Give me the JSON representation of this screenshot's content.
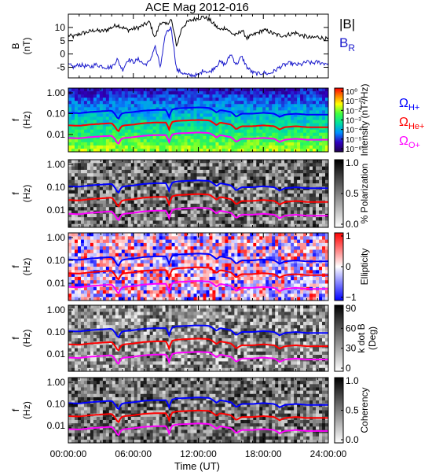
{
  "chart_data": {
    "title": "ACE Mag 2012-016",
    "xlabel": "Time (UT)",
    "x_ticks": [
      "00:00:00",
      "06:00:00",
      "12:00:00",
      "18:00:00",
      "24:00:00"
    ],
    "x_range_hours": [
      0,
      24
    ],
    "colors": {
      "B_total": "#000000",
      "B_R": "#1a1acc",
      "H_plus": "#0000ff",
      "He_plus": "#ff0000",
      "O_plus": "#ff00ff"
    },
    "panels": [
      {
        "type": "line",
        "ylabel_top": "B",
        "ylabel_bottom": "(nT)",
        "y_ticks": [
          10,
          5,
          0,
          -5
        ],
        "ylim": [
          -9,
          15
        ],
        "legend": [
          "|B|",
          "BR"
        ],
        "legend_main": "B",
        "legend_sub": "R",
        "legend_total": "|B|",
        "series": [
          {
            "key": "B_total",
            "color": "#000000",
            "x": [
              0,
              0.5,
              1,
              1.5,
              2,
              2.5,
              3,
              3.5,
              4,
              4.5,
              5,
              5.5,
              6,
              6.5,
              7,
              7.5,
              8,
              8.5,
              9,
              9.5,
              10,
              10.5,
              11,
              11.5,
              12,
              12.5,
              13,
              13.5,
              14,
              14.5,
              15,
              15.5,
              16,
              16.5,
              17,
              17.5,
              18,
              18.5,
              19,
              19.5,
              20,
              20.5,
              21,
              21.5,
              22,
              22.5,
              23,
              23.5,
              24
            ],
            "values": [
              7,
              6.5,
              7.5,
              8,
              8.5,
              9,
              8.5,
              9,
              10,
              11,
              10,
              9,
              9.5,
              10,
              11,
              12,
              6,
              12,
              11,
              13,
              3,
              10,
              12,
              13,
              13.5,
              14,
              13,
              11,
              9,
              10,
              8,
              7,
              9,
              6,
              7,
              8,
              9,
              8.5,
              7.5,
              7,
              7,
              7.5,
              8,
              7,
              6.5,
              6,
              6.5,
              6,
              5.5
            ]
          },
          {
            "key": "B_R",
            "color": "#1a1acc",
            "x": [
              0,
              0.5,
              1,
              1.5,
              2,
              2.5,
              3,
              3.5,
              4,
              4.5,
              5,
              5.5,
              6,
              6.5,
              7,
              7.5,
              8,
              8.5,
              9,
              9.5,
              10,
              10.5,
              11,
              11.5,
              12,
              12.5,
              13,
              13.5,
              14,
              14.5,
              15,
              15.5,
              16,
              16.5,
              17,
              17.5,
              18,
              18.5,
              19,
              19.5,
              20,
              20.5,
              21,
              21.5,
              22,
              22.5,
              23,
              23.5,
              24
            ],
            "values": [
              -4,
              -5,
              -4,
              -4.5,
              -5,
              -4,
              -4.5,
              -5,
              -5,
              -2,
              -6,
              -2,
              -3,
              -2,
              -4,
              -3,
              3,
              -5,
              8,
              10,
              -6,
              -7,
              -8,
              -8,
              -8,
              -6,
              -7,
              -5,
              -3,
              -4,
              0,
              -4,
              -1,
              -5,
              -7,
              -7.5,
              -7,
              -7.5,
              -6.5,
              -5,
              -4,
              -3.5,
              -4,
              -4,
              -3,
              -3.5,
              -3,
              -3.5,
              -3.5
            ]
          }
        ]
      },
      {
        "type": "heatmap",
        "ylabel_top": "f",
        "ylabel_bottom": "(Hz)",
        "y_ticks": [
          "1.00",
          "0.10",
          "0.01"
        ],
        "y_scale": "log",
        "cbar_label": "Intensity (nT²/Hz)",
        "cbar_ticks": [
          "10⁰",
          "10⁻¹",
          "10⁻²",
          "10⁻³",
          "10⁻⁴",
          "10⁻⁵",
          "10⁻⁶"
        ],
        "colormap": "rainbow",
        "legend": [
          "ΩH+",
          "ΩHe+",
          "ΩO+"
        ],
        "legend_omega": "Ω",
        "legend_subs": [
          "H+",
          "He+",
          "O+"
        ]
      },
      {
        "type": "heatmap",
        "ylabel_top": "f",
        "ylabel_bottom": "(Hz)",
        "y_ticks": [
          "1.00",
          "0.10",
          "0.01"
        ],
        "y_scale": "log",
        "cbar_label": "% Polarization",
        "cbar_ticks": [
          "1.0",
          "0.5",
          "0.0"
        ],
        "colormap": "grayscale"
      },
      {
        "type": "heatmap",
        "ylabel_top": "f",
        "ylabel_bottom": "(Hz)",
        "y_ticks": [
          "1.00",
          "0.10",
          "0.01"
        ],
        "y_scale": "log",
        "cbar_label": "Ellipticity",
        "cbar_ticks": [
          "1",
          "0",
          "−1"
        ],
        "colormap": "blue-white-red"
      },
      {
        "type": "heatmap",
        "ylabel_top": "f",
        "ylabel_bottom": "(Hz)",
        "y_ticks": [
          "1.00",
          "0.10",
          "0.01"
        ],
        "y_scale": "log",
        "cbar_label": "k dot B",
        "cbar_label2": "(Deg)",
        "cbar_ticks": [
          "90",
          "60",
          "30",
          "0"
        ],
        "colormap": "grayscale"
      },
      {
        "type": "heatmap",
        "ylabel_top": "f",
        "ylabel_bottom": "(Hz)",
        "y_ticks": [
          "1.00",
          "0.10",
          "0.01"
        ],
        "y_scale": "log",
        "cbar_label": "Coherency",
        "cbar_ticks": [
          "1.0",
          "0.5",
          "0.0"
        ],
        "colormap": "grayscale"
      }
    ],
    "gyro_frequencies_hz": {
      "x": [
        0,
        1,
        2,
        3,
        4,
        4.6,
        4.9,
        5.2,
        6,
        7,
        8,
        9,
        9.3,
        9.6,
        10,
        11,
        12,
        13,
        13.7,
        14,
        15,
        15.5,
        16,
        17,
        18,
        19,
        19.5,
        20,
        21,
        22,
        23,
        24
      ],
      "H_plus": [
        0.11,
        0.105,
        0.12,
        0.13,
        0.14,
        0.05,
        0.1,
        0.11,
        0.12,
        0.14,
        0.15,
        0.15,
        0.07,
        0.16,
        0.18,
        0.19,
        0.2,
        0.19,
        0.11,
        0.15,
        0.12,
        0.07,
        0.1,
        0.1,
        0.11,
        0.1,
        0.07,
        0.09,
        0.1,
        0.09,
        0.09,
        0.09
      ]
    }
  }
}
